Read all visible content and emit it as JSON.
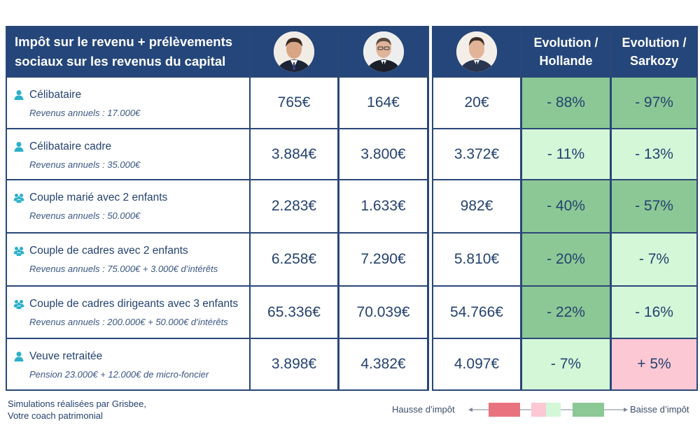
{
  "header": {
    "title_line1": "Impôt sur le revenu + prélèvements",
    "title_line2": "sociaux sur les revenus du capital",
    "evol_hollande_line1": "Evolution /",
    "evol_hollande_line2": "Hollande",
    "evol_sarkozy_line1": "Evolution /",
    "evol_sarkozy_line2": "Sarkozy",
    "avatars": [
      "portrait-sarkozy",
      "portrait-hollande",
      "portrait-macron"
    ]
  },
  "rows": [
    {
      "icon": "person-icon",
      "label": "Célibataire",
      "sub": "Revenus annuels : 17.000€",
      "sarkozy": "765€",
      "hollande": "164€",
      "macron": "20€",
      "evol_hollande": "- 88%",
      "evol_sarkozy": "- 97%",
      "shade_hollande": "dark",
      "shade_sarkozy": "dark"
    },
    {
      "icon": "person-icon",
      "label": "Célibataire cadre",
      "sub": "Revenus annuels : 35.000€",
      "sarkozy": "3.884€",
      "hollande": "3.800€",
      "macron": "3.372€",
      "evol_hollande": "- 11%",
      "evol_sarkozy": "- 13%",
      "shade_hollande": "light",
      "shade_sarkozy": "light"
    },
    {
      "icon": "group-icon",
      "label": "Couple marié avec 2 enfants",
      "sub": "Revenus annuels : 50.000€",
      "sarkozy": "2.283€",
      "hollande": "1.633€",
      "macron": "982€",
      "evol_hollande": "- 40%",
      "evol_sarkozy": "- 57%",
      "shade_hollande": "dark",
      "shade_sarkozy": "dark"
    },
    {
      "icon": "group-icon",
      "label": "Couple de cadres avec 2 enfants",
      "sub": "Revenus annuels : 75.000€ + 3.000€ d’intérêts",
      "sarkozy": "6.258€",
      "hollande": "7.290€",
      "macron": "5.810€",
      "evol_hollande": "- 20%",
      "evol_sarkozy": "- 7%",
      "shade_hollande": "dark",
      "shade_sarkozy": "light"
    },
    {
      "icon": "group-icon",
      "label": "Couple de cadres dirigeants avec 3 enfants",
      "sub": "Revenus annuels  : 200.000€ + 50.000€ d’intérêts",
      "sarkozy": "65.336€",
      "hollande": "70.039€",
      "macron": "54.766€",
      "evol_hollande": "- 22%",
      "evol_sarkozy": "- 16%",
      "shade_hollande": "dark",
      "shade_sarkozy": "light"
    },
    {
      "icon": "person-icon",
      "label": "Veuve retraitée",
      "sub": "Pension 23.000€ + 12.000€ de micro-foncier",
      "sarkozy": "3.898€",
      "hollande": "4.382€",
      "macron": "4.097€",
      "evol_hollande": "- 7%",
      "evol_sarkozy": "+ 5%",
      "shade_hollande": "light",
      "shade_sarkozy": "pink"
    }
  ],
  "footer": {
    "line1": "Simulations réalisées par Grisbee,",
    "line2": "Votre coach patrimonial"
  },
  "legend": {
    "left": "Hausse d’impôt",
    "right": "Baisse d’impôt",
    "colors": [
      "#e8737f",
      "#fbc8d4",
      "#d4f7d8",
      "#8cc895"
    ]
  }
}
